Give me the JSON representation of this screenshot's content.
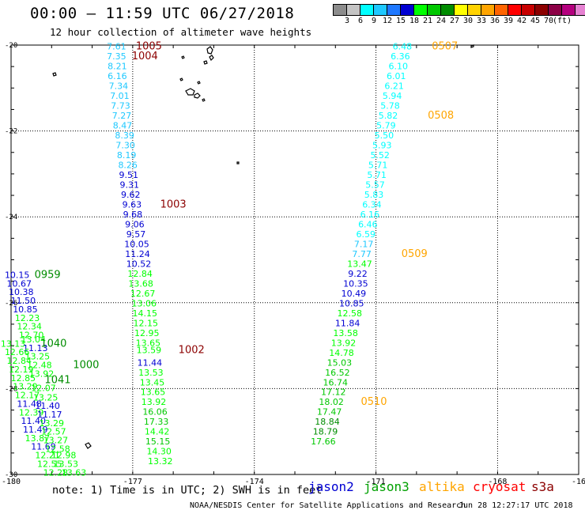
{
  "title": "00:00 – 11:59 UTC 06/27/2018",
  "subtitle": "12 hour collection of altimeter wave heights",
  "colorbar": {
    "colors": [
      "#8c8c8c",
      "#c4c4c4",
      "#00ffff",
      "#1ec8ff",
      "#1e78ff",
      "#0000d2",
      "#00ff00",
      "#00c800",
      "#008c00",
      "#ffff00",
      "#ffd200",
      "#ffa500",
      "#ff6400",
      "#ff0000",
      "#c80000",
      "#8c0000",
      "#8c0046",
      "#b4007e",
      "#e682d2",
      "#000000"
    ],
    "labels": [
      "3",
      "6",
      "9",
      "12",
      "15",
      "18",
      "21",
      "24",
      "27",
      "30",
      "33",
      "36",
      "39",
      "42",
      "45",
      "70",
      "(ft)"
    ]
  },
  "note": "note: 1) Time is in UTC; 2) SWH is in feet",
  "legend": [
    {
      "label": "jason2",
      "color": "#0000d2"
    },
    {
      "label": "jason3",
      "color": "#00a000"
    },
    {
      "label": "altika",
      "color": "#ffa500"
    },
    {
      "label": "cryosat",
      "color": "#ff0000"
    },
    {
      "label": "s3a",
      "color": "#8c0000"
    }
  ],
  "footer": {
    "credit": "NOAA/NESDIS Center for Satellite Applications and Research",
    "date": "Jun 28 12:27:17 UTC 2018"
  },
  "chart_data": {
    "type": "scatter",
    "xlabel": "",
    "ylabel": "",
    "xlim": [
      -180,
      -166
    ],
    "ylim": [
      -30,
      -20
    ],
    "xticks": [
      "-180",
      "-177",
      "-174",
      "-171",
      "-168",
      "-16"
    ],
    "yticks": [
      "-20",
      "-22",
      "-24",
      "-26",
      "-28",
      "-30"
    ],
    "tracks": [
      {
        "values": [
          {
            "v": "7.61",
            "c": "#1ec8ff",
            "x": -177.4,
            "y": -20.03
          },
          {
            "v": "7.35",
            "c": "#1ec8ff",
            "x": -177.4,
            "y": -20.26
          },
          {
            "v": "8.21",
            "c": "#1ec8ff",
            "x": -177.38,
            "y": -20.49
          },
          {
            "v": "6.16",
            "c": "#1ec8ff",
            "x": -177.38,
            "y": -20.72
          },
          {
            "v": "7.34",
            "c": "#1ec8ff",
            "x": -177.35,
            "y": -20.95
          },
          {
            "v": "7.01",
            "c": "#1ec8ff",
            "x": -177.32,
            "y": -21.18
          },
          {
            "v": "7.73",
            "c": "#1ec8ff",
            "x": -177.3,
            "y": -21.41
          },
          {
            "v": "7.27",
            "c": "#1ec8ff",
            "x": -177.27,
            "y": -21.64
          },
          {
            "v": "8.47",
            "c": "#1ec8ff",
            "x": -177.25,
            "y": -21.87
          },
          {
            "v": "8.39",
            "c": "#1ec8ff",
            "x": -177.2,
            "y": -22.1
          },
          {
            "v": "7.30",
            "c": "#1ec8ff",
            "x": -177.18,
            "y": -22.33
          },
          {
            "v": "8.19",
            "c": "#1ec8ff",
            "x": -177.15,
            "y": -22.56
          },
          {
            "v": "8.26",
            "c": "#1ec8ff",
            "x": -177.12,
            "y": -22.79
          },
          {
            "v": "9.51",
            "c": "#0000d2",
            "x": -177.1,
            "y": -23.02
          },
          {
            "v": "9.31",
            "c": "#0000d2",
            "x": -177.08,
            "y": -23.25
          },
          {
            "v": "9.62",
            "c": "#0000d2",
            "x": -177.05,
            "y": -23.48
          },
          {
            "v": "9.63",
            "c": "#0000d2",
            "x": -177.02,
            "y": -23.71
          },
          {
            "v": "9.68",
            "c": "#0000d2",
            "x": -177.0,
            "y": -23.94
          },
          {
            "v": "9.06",
            "c": "#0000d2",
            "x": -176.95,
            "y": -24.17
          },
          {
            "v": "9.57",
            "c": "#0000d2",
            "x": -176.92,
            "y": -24.4
          },
          {
            "v": "10.05",
            "c": "#0000d2",
            "x": -176.9,
            "y": -24.63
          },
          {
            "v": "11.24",
            "c": "#0000d2",
            "x": -176.88,
            "y": -24.86
          },
          {
            "v": "10.52",
            "c": "#0000d2",
            "x": -176.85,
            "y": -25.09
          },
          {
            "v": "12.84",
            "c": "#00ff00",
            "x": -176.82,
            "y": -25.32
          },
          {
            "v": "13.68",
            "c": "#00ff00",
            "x": -176.8,
            "y": -25.55
          },
          {
            "v": "12.67",
            "c": "#00ff00",
            "x": -176.75,
            "y": -25.78
          },
          {
            "v": "13.06",
            "c": "#00ff00",
            "x": -176.72,
            "y": -26.01
          },
          {
            "v": "14.15",
            "c": "#00ff00",
            "x": -176.7,
            "y": -26.24
          },
          {
            "v": "12.15",
            "c": "#00ff00",
            "x": -176.68,
            "y": -26.47
          },
          {
            "v": "12.95",
            "c": "#00ff00",
            "x": -176.65,
            "y": -26.7
          },
          {
            "v": "13.65",
            "c": "#00ff00",
            "x": -176.62,
            "y": -26.93
          },
          {
            "v": "13.59",
            "c": "#00ff00",
            "x": -176.6,
            "y": -27.1
          },
          {
            "v": "11.44",
            "c": "#0000d2",
            "x": -176.58,
            "y": -27.39
          },
          {
            "v": "13.53",
            "c": "#00ff00",
            "x": -176.55,
            "y": -27.62
          },
          {
            "v": "13.45",
            "c": "#00ff00",
            "x": -176.52,
            "y": -27.85
          },
          {
            "v": "13.65",
            "c": "#00ff00",
            "x": -176.5,
            "y": -28.08
          },
          {
            "v": "13.92",
            "c": "#00ff00",
            "x": -176.48,
            "y": -28.31
          },
          {
            "v": "16.06",
            "c": "#00c800",
            "x": -176.45,
            "y": -28.54
          },
          {
            "v": "17.33",
            "c": "#00c800",
            "x": -176.42,
            "y": -28.77
          },
          {
            "v": "14.42",
            "c": "#00ff00",
            "x": -176.4,
            "y": -29.0
          },
          {
            "v": "15.15",
            "c": "#00c800",
            "x": -176.38,
            "y": -29.23
          },
          {
            "v": "14.30",
            "c": "#00ff00",
            "x": -176.35,
            "y": -29.46
          },
          {
            "v": "13.32",
            "c": "#00ff00",
            "x": -176.32,
            "y": -29.69
          }
        ]
      },
      {
        "values": [
          {
            "v": "10.15",
            "c": "#0000d2",
            "x": -179.85,
            "y": -25.35
          },
          {
            "v": "10.67",
            "c": "#0000d2",
            "x": -179.8,
            "y": -25.55
          },
          {
            "v": "10.38",
            "c": "#0000d2",
            "x": -179.75,
            "y": -25.75
          },
          {
            "v": "11.50",
            "c": "#0000d2",
            "x": -179.7,
            "y": -25.95
          },
          {
            "v": "10.85",
            "c": "#0000d2",
            "x": -179.65,
            "y": -26.15
          },
          {
            "v": "12.23",
            "c": "#00ff00",
            "x": -179.6,
            "y": -26.35
          },
          {
            "v": "12.34",
            "c": "#00ff00",
            "x": -179.55,
            "y": -26.55
          },
          {
            "v": "12.70",
            "c": "#00ff00",
            "x": -179.5,
            "y": -26.75
          },
          {
            "v": "13.13",
            "c": "#00ff00",
            "x": -179.95,
            "y": -26.95
          },
          {
            "v": "13.04",
            "c": "#00ff00",
            "x": -179.45,
            "y": -26.85
          },
          {
            "v": "11.13",
            "c": "#0000d2",
            "x": -179.4,
            "y": -27.05
          },
          {
            "v": "12.66",
            "c": "#00ff00",
            "x": -179.85,
            "y": -27.15
          },
          {
            "v": "13.25",
            "c": "#00ff00",
            "x": -179.35,
            "y": -27.25
          },
          {
            "v": "12.84",
            "c": "#00ff00",
            "x": -179.8,
            "y": -27.35
          },
          {
            "v": "12.48",
            "c": "#00ff00",
            "x": -179.3,
            "y": -27.45
          },
          {
            "v": "12.19",
            "c": "#00ff00",
            "x": -179.75,
            "y": -27.55
          },
          {
            "v": "13.92",
            "c": "#00ff00",
            "x": -179.25,
            "y": -27.65
          },
          {
            "v": "12.85",
            "c": "#00ff00",
            "x": -179.7,
            "y": -27.75
          },
          {
            "v": "13.29",
            "c": "#00ff00",
            "x": -179.65,
            "y": -27.95
          },
          {
            "v": "12.07",
            "c": "#00ff00",
            "x": -179.2,
            "y": -27.98
          },
          {
            "v": "12.17",
            "c": "#00ff00",
            "x": -179.6,
            "y": -28.15
          },
          {
            "v": "13.25",
            "c": "#00ff00",
            "x": -179.15,
            "y": -28.2
          },
          {
            "v": "11.48",
            "c": "#0000d2",
            "x": -179.55,
            "y": -28.35
          },
          {
            "v": "11.40",
            "c": "#0000d2",
            "x": -179.1,
            "y": -28.4
          },
          {
            "v": "12.39",
            "c": "#00ff00",
            "x": -179.5,
            "y": -28.55
          },
          {
            "v": "11.17",
            "c": "#0000d2",
            "x": -179.05,
            "y": -28.6
          },
          {
            "v": "11.40",
            "c": "#0000d2",
            "x": -179.45,
            "y": -28.75
          },
          {
            "v": "13.29",
            "c": "#00ff00",
            "x": -179.0,
            "y": -28.8
          },
          {
            "v": "11.49",
            "c": "#0000d2",
            "x": -179.4,
            "y": -28.95
          },
          {
            "v": "12.57",
            "c": "#00ff00",
            "x": -178.95,
            "y": -29.0
          },
          {
            "v": "13.87",
            "c": "#00ff00",
            "x": -179.35,
            "y": -29.15
          },
          {
            "v": "13.27",
            "c": "#00ff00",
            "x": -178.9,
            "y": -29.2
          },
          {
            "v": "11.69",
            "c": "#0000d2",
            "x": -179.2,
            "y": -29.35
          },
          {
            "v": "12.58",
            "c": "#00ff00",
            "x": -178.85,
            "y": -29.4
          },
          {
            "v": "12.21",
            "c": "#00ff00",
            "x": -179.1,
            "y": -29.55
          },
          {
            "v": "12.98",
            "c": "#00ff00",
            "x": -178.7,
            "y": -29.55
          },
          {
            "v": "12.55",
            "c": "#00ff00",
            "x": -179.05,
            "y": -29.75
          },
          {
            "v": "13.53",
            "c": "#00ff00",
            "x": -178.65,
            "y": -29.75
          },
          {
            "v": "12.28",
            "c": "#00ff00",
            "x": -178.9,
            "y": -29.95
          },
          {
            "v": "13.63",
            "c": "#00ff00",
            "x": -178.45,
            "y": -29.95
          }
        ]
      },
      {
        "values": [
          {
            "v": "6.48",
            "c": "#00ffff",
            "x": -170.35,
            "y": -20.03
          },
          {
            "v": "6.36",
            "c": "#00ffff",
            "x": -170.4,
            "y": -20.26
          },
          {
            "v": "6.10",
            "c": "#00ffff",
            "x": -170.45,
            "y": -20.49
          },
          {
            "v": "6.01",
            "c": "#00ffff",
            "x": -170.5,
            "y": -20.72
          },
          {
            "v": "6.21",
            "c": "#00ffff",
            "x": -170.55,
            "y": -20.95
          },
          {
            "v": "5.94",
            "c": "#00ffff",
            "x": -170.6,
            "y": -21.18
          },
          {
            "v": "5.78",
            "c": "#00ffff",
            "x": -170.65,
            "y": -21.41
          },
          {
            "v": "5.82",
            "c": "#00ffff",
            "x": -170.7,
            "y": -21.64
          },
          {
            "v": "5.79",
            "c": "#00ffff",
            "x": -170.75,
            "y": -21.87
          },
          {
            "v": "5.50",
            "c": "#00ffff",
            "x": -170.8,
            "y": -22.1
          },
          {
            "v": "5.93",
            "c": "#00ffff",
            "x": -170.85,
            "y": -22.33
          },
          {
            "v": "5.52",
            "c": "#00ffff",
            "x": -170.9,
            "y": -22.56
          },
          {
            "v": "5.71",
            "c": "#00ffff",
            "x": -170.95,
            "y": -22.79
          },
          {
            "v": "5.71",
            "c": "#00ffff",
            "x": -170.98,
            "y": -23.02
          },
          {
            "v": "5.57",
            "c": "#00ffff",
            "x": -171.02,
            "y": -23.25
          },
          {
            "v": "5.83",
            "c": "#00ffff",
            "x": -171.05,
            "y": -23.48
          },
          {
            "v": "6.34",
            "c": "#00ffff",
            "x": -171.1,
            "y": -23.71
          },
          {
            "v": "6.16",
            "c": "#00ffff",
            "x": -171.15,
            "y": -23.94
          },
          {
            "v": "6.46",
            "c": "#00ffff",
            "x": -171.2,
            "y": -24.17
          },
          {
            "v": "6.59",
            "c": "#00ffff",
            "x": -171.25,
            "y": -24.4
          },
          {
            "v": "7.17",
            "c": "#1ec8ff",
            "x": -171.3,
            "y": -24.63
          },
          {
            "v": "7.77",
            "c": "#1ec8ff",
            "x": -171.35,
            "y": -24.86
          },
          {
            "v": "13.47",
            "c": "#00ff00",
            "x": -171.4,
            "y": -25.09
          },
          {
            "v": "9.22",
            "c": "#0000d2",
            "x": -171.45,
            "y": -25.32
          },
          {
            "v": "10.35",
            "c": "#0000d2",
            "x": -171.5,
            "y": -25.55
          },
          {
            "v": "10.49",
            "c": "#0000d2",
            "x": -171.55,
            "y": -25.78
          },
          {
            "v": "10.85",
            "c": "#0000d2",
            "x": -171.6,
            "y": -26.01
          },
          {
            "v": "12.58",
            "c": "#00ff00",
            "x": -171.65,
            "y": -26.24
          },
          {
            "v": "11.84",
            "c": "#0000d2",
            "x": -171.7,
            "y": -26.47
          },
          {
            "v": "13.58",
            "c": "#00ff00",
            "x": -171.75,
            "y": -26.7
          },
          {
            "v": "13.92",
            "c": "#00ff00",
            "x": -171.8,
            "y": -26.93
          },
          {
            "v": "14.78",
            "c": "#00ff00",
            "x": -171.85,
            "y": -27.16
          },
          {
            "v": "15.03",
            "c": "#00c800",
            "x": -171.9,
            "y": -27.39
          },
          {
            "v": "16.52",
            "c": "#00c800",
            "x": -171.95,
            "y": -27.62
          },
          {
            "v": "16.74",
            "c": "#00c800",
            "x": -172.0,
            "y": -27.85
          },
          {
            "v": "17.12",
            "c": "#00c800",
            "x": -172.05,
            "y": -28.08
          },
          {
            "v": "18.02",
            "c": "#00c800",
            "x": -172.1,
            "y": -28.31
          },
          {
            "v": "17.47",
            "c": "#00c800",
            "x": -172.15,
            "y": -28.54
          },
          {
            "v": "18.84",
            "c": "#008c00",
            "x": -172.2,
            "y": -28.77
          },
          {
            "v": "18.79",
            "c": "#008c00",
            "x": -172.25,
            "y": -29.0
          },
          {
            "v": "17.66",
            "c": "#00c800",
            "x": -172.3,
            "y": -29.23
          }
        ]
      }
    ],
    "time_labels": [
      {
        "text": "1005",
        "c": "#8c0000",
        "x": -176.6,
        "y": -20.03
      },
      {
        "text": "1004",
        "c": "#8c0000",
        "x": -176.7,
        "y": -20.26
      },
      {
        "text": "1003",
        "c": "#8c0000",
        "x": -176.0,
        "y": -23.71
      },
      {
        "text": "1002",
        "c": "#8c0000",
        "x": -175.55,
        "y": -27.1
      },
      {
        "text": "0959",
        "c": "#008c00",
        "x": -179.1,
        "y": -25.35
      },
      {
        "text": "1040",
        "c": "#008c00",
        "x": -178.95,
        "y": -26.95
      },
      {
        "text": "1000",
        "c": "#008c00",
        "x": -178.15,
        "y": -27.45
      },
      {
        "text": "1041",
        "c": "#008c00",
        "x": -178.85,
        "y": -27.8
      },
      {
        "text": "0507",
        "c": "#ffa500",
        "x": -169.3,
        "y": -20.03
      },
      {
        "text": "0508",
        "c": "#ffa500",
        "x": -169.4,
        "y": -21.64
      },
      {
        "text": "0509",
        "c": "#ffa500",
        "x": -170.05,
        "y": -24.86
      },
      {
        "text": "0510",
        "c": "#ffa500",
        "x": -171.05,
        "y": -28.31
      }
    ]
  }
}
